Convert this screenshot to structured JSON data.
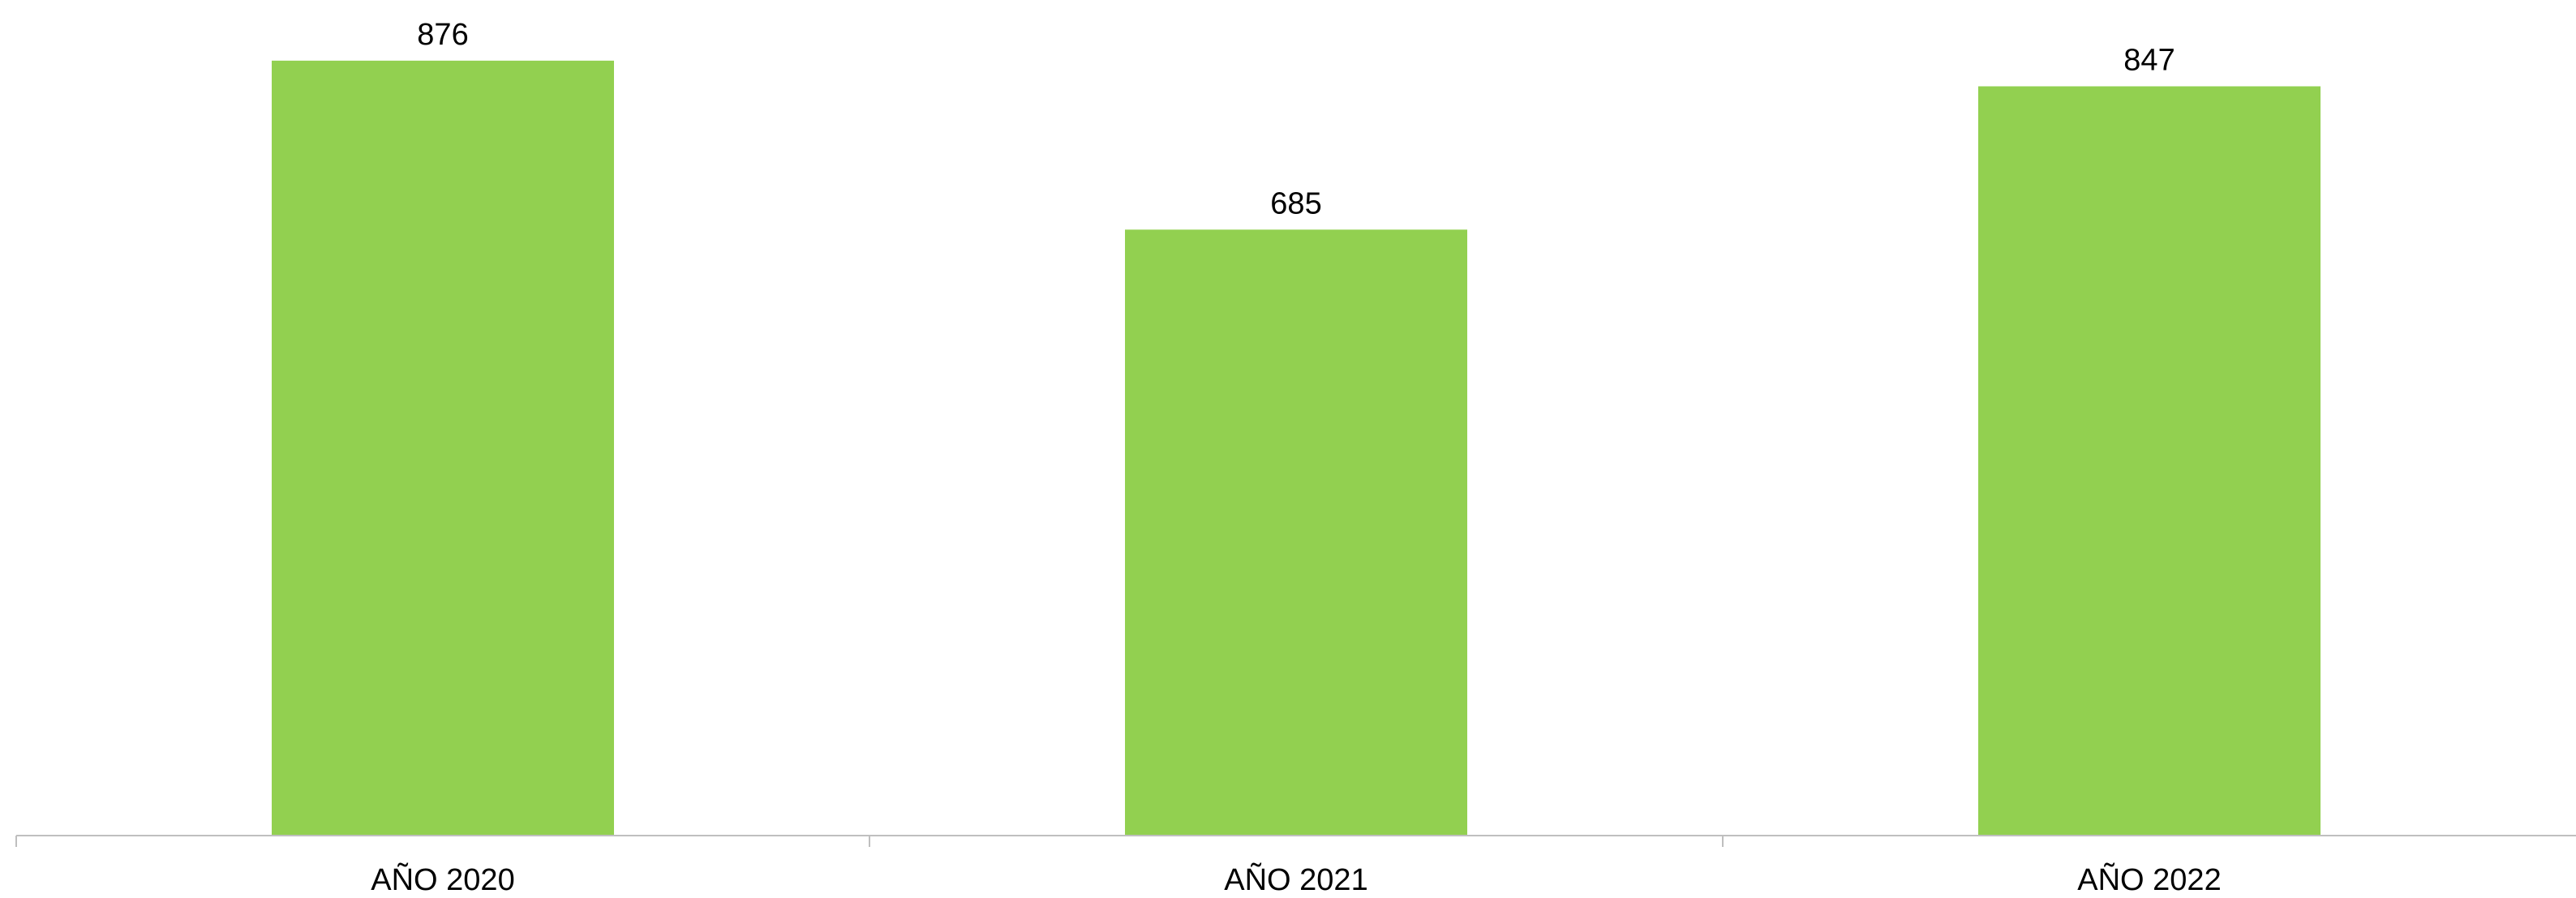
{
  "chart_data": {
    "type": "bar",
    "categories": [
      "AÑO 2020",
      "AÑO 2021",
      "AÑO 2022"
    ],
    "values": [
      876,
      685,
      847
    ],
    "data_labels": [
      "876",
      "685",
      "847"
    ],
    "title": "",
    "xlabel": "",
    "ylabel": "",
    "ylim": [
      0,
      900
    ],
    "grid": false,
    "legend": "none",
    "colors": {
      "bar": "#92D050",
      "axis": "#BFBFBF",
      "text": "#000000"
    }
  }
}
